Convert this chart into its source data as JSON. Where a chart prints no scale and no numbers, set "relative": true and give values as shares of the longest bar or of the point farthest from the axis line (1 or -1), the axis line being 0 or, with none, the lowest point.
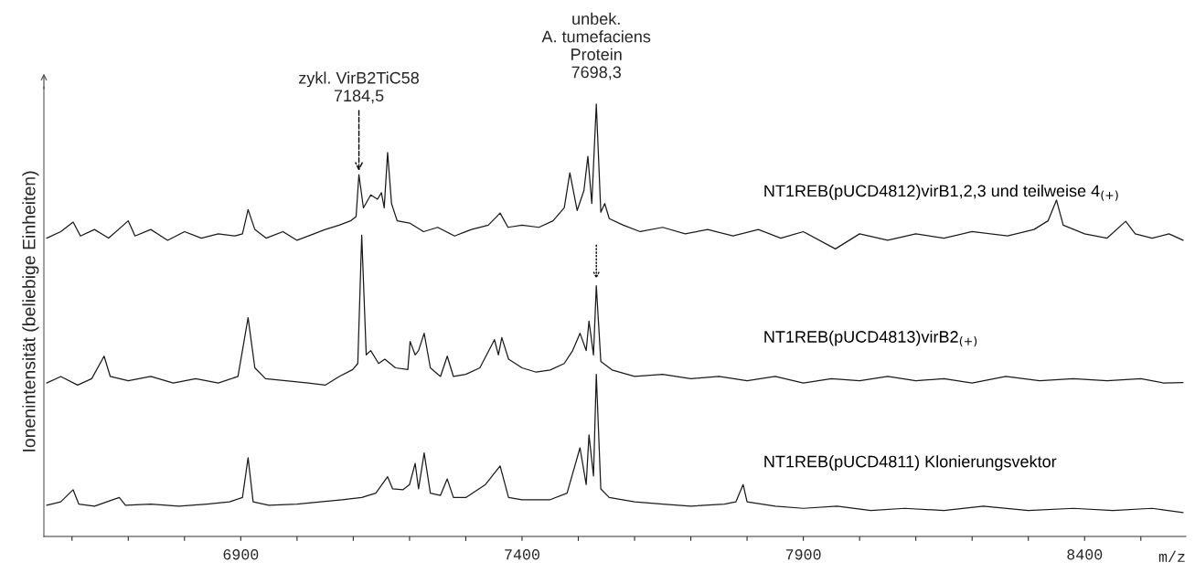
{
  "chart_data": {
    "type": "line",
    "relative": true,
    "xlabel": "m/z",
    "ylabel": "Ionenintensität (beliebige Einheiten)",
    "xlim": [
      6550,
      8580
    ],
    "xticks": [
      {
        "value": 6600,
        "label": null
      },
      {
        "value": 6700,
        "label": null
      },
      {
        "value": 6800,
        "label": null
      },
      6900,
      {
        "value": 7000,
        "label": null
      },
      {
        "value": 7100,
        "label": null
      },
      {
        "value": 7200,
        "label": null
      },
      {
        "value": 7300,
        "label": null
      },
      7400,
      {
        "value": 7500,
        "label": null
      },
      {
        "value": 7600,
        "label": null
      },
      {
        "value": 7700,
        "label": null
      },
      {
        "value": 7800,
        "label": null
      },
      7900,
      {
        "value": 8000,
        "label": null
      },
      {
        "value": 8100,
        "label": null
      },
      {
        "value": 8200,
        "label": null
      },
      {
        "value": 8300,
        "label": null
      },
      8400,
      {
        "value": 8500,
        "label": null
      }
    ],
    "grid": false,
    "marker": "none",
    "line_style": "solid",
    "annotations": [
      {
        "text": "zykl. VirB2TiC58\n7184,5",
        "x": 7110,
        "y": 0.837
      },
      {
        "text": "unbek.\nA. tumefaciens\nProtein\n7698,3",
        "x": 7532,
        "y": 1.0
      }
    ],
    "series": [
      {
        "name": "NT1REB(pUCD4812)virB1,2,3 und teilweise 4$_{(+)}$",
        "color": "#1a1a1a",
        "x": [
          6555,
          6580,
          6602,
          6615,
          6640,
          6665,
          6700,
          6712,
          6740,
          6770,
          6800,
          6830,
          6860,
          6890,
          6903,
          6913,
          6925,
          6945,
          6975,
          7000,
          7030,
          7050,
          7075,
          7095,
          7105,
          7110,
          7118,
          7131,
          7143,
          7150,
          7155,
          7161,
          7168,
          7178,
          7200,
          7225,
          7250,
          7280,
          7310,
          7340,
          7361,
          7375,
          7400,
          7430,
          7455,
          7475,
          7485,
          7498,
          7510,
          7517,
          7524,
          7532,
          7540,
          7547,
          7555,
          7580,
          7610,
          7650,
          7690,
          7730,
          7775,
          7820,
          7860,
          7900,
          7957,
          8000,
          8050,
          8100,
          8150,
          8200,
          8263,
          8310,
          8335,
          8350,
          8362,
          8400,
          8440,
          8473,
          8490,
          8520,
          8550,
          8575
        ],
        "values": [
          0.69,
          0.705,
          0.727,
          0.695,
          0.71,
          0.69,
          0.73,
          0.695,
          0.71,
          0.685,
          0.705,
          0.69,
          0.7,
          0.695,
          0.7,
          0.756,
          0.71,
          0.69,
          0.705,
          0.685,
          0.7,
          0.71,
          0.72,
          0.73,
          0.74,
          0.837,
          0.76,
          0.79,
          0.78,
          0.795,
          0.76,
          0.888,
          0.77,
          0.73,
          0.725,
          0.705,
          0.715,
          0.695,
          0.71,
          0.72,
          0.748,
          0.715,
          0.72,
          0.715,
          0.73,
          0.76,
          0.841,
          0.754,
          0.8,
          0.879,
          0.77,
          1.0,
          0.75,
          0.77,
          0.735,
          0.72,
          0.705,
          0.715,
          0.7,
          0.71,
          0.695,
          0.71,
          0.69,
          0.705,
          0.665,
          0.7,
          0.685,
          0.7,
          0.69,
          0.705,
          0.695,
          0.71,
          0.73,
          0.778,
          0.72,
          0.7,
          0.69,
          0.729,
          0.7,
          0.69,
          0.7,
          0.685
        ]
      },
      {
        "name": "NT1REB(pUCD4813)virB2$_{(+)}$",
        "color": "#1a1a1a",
        "x": [
          6555,
          6580,
          6610,
          6635,
          6657,
          6668,
          6700,
          6740,
          6780,
          6820,
          6860,
          6895,
          6913,
          6925,
          6944,
          6980,
          7020,
          7050,
          7075,
          7099,
          7108,
          7115,
          7123,
          7131,
          7145,
          7156,
          7175,
          7197,
          7201,
          7210,
          7216,
          7226,
          7237,
          7255,
          7267,
          7278,
          7300,
          7325,
          7351,
          7358,
          7364,
          7376,
          7400,
          7425,
          7450,
          7475,
          7490,
          7503,
          7514,
          7519,
          7527,
          7532,
          7540,
          7560,
          7600,
          7650,
          7700,
          7750,
          7800,
          7850,
          7900,
          7950,
          8000,
          8050,
          8100,
          8150,
          8200,
          8260,
          8320,
          8380,
          8440,
          8500,
          8540,
          8575
        ],
        "values": [
          0.355,
          0.37,
          0.35,
          0.365,
          0.417,
          0.37,
          0.36,
          0.37,
          0.355,
          0.365,
          0.355,
          0.37,
          0.506,
          0.39,
          0.365,
          0.36,
          0.355,
          0.35,
          0.37,
          0.386,
          0.4,
          0.697,
          0.42,
          0.43,
          0.4,
          0.41,
          0.39,
          0.386,
          0.451,
          0.42,
          0.43,
          0.47,
          0.39,
          0.37,
          0.417,
          0.37,
          0.375,
          0.39,
          0.455,
          0.42,
          0.46,
          0.41,
          0.39,
          0.38,
          0.385,
          0.4,
          0.43,
          0.47,
          0.43,
          0.498,
          0.42,
          0.58,
          0.405,
          0.385,
          0.37,
          0.375,
          0.365,
          0.37,
          0.36,
          0.37,
          0.355,
          0.365,
          0.36,
          0.37,
          0.36,
          0.365,
          0.355,
          0.37,
          0.36,
          0.365,
          0.36,
          0.365,
          0.355,
          0.356
        ]
      },
      {
        "name": "NT1REB(pUCD4811) Klonierungsvektor",
        "color": "#1a1a1a",
        "x": [
          6555,
          6580,
          6602,
          6612,
          6640,
          6684,
          6695,
          6740,
          6790,
          6840,
          6880,
          6903,
          6913,
          6922,
          6950,
          7000,
          7042,
          7080,
          7115,
          7140,
          7161,
          7170,
          7188,
          7200,
          7210,
          7216,
          7226,
          7237,
          7255,
          7267,
          7278,
          7300,
          7335,
          7361,
          7376,
          7400,
          7450,
          7480,
          7503,
          7514,
          7519,
          7527,
          7532,
          7540,
          7555,
          7600,
          7650,
          7700,
          7760,
          7780,
          7793,
          7800,
          7850,
          7900,
          7960,
          8020,
          8080,
          8150,
          8220,
          8300,
          8380,
          8450,
          8520,
          8575
        ],
        "values": [
          0.072,
          0.08,
          0.108,
          0.075,
          0.07,
          0.09,
          0.072,
          0.075,
          0.07,
          0.075,
          0.08,
          0.09,
          0.182,
          0.08,
          0.072,
          0.075,
          0.08,
          0.085,
          0.09,
          0.1,
          0.138,
          0.11,
          0.108,
          0.12,
          0.169,
          0.11,
          0.193,
          0.1,
          0.095,
          0.133,
          0.09,
          0.09,
          0.12,
          0.163,
          0.09,
          0.085,
          0.085,
          0.1,
          0.205,
          0.12,
          0.235,
          0.14,
          0.375,
          0.11,
          0.09,
          0.08,
          0.075,
          0.07,
          0.075,
          0.08,
          0.12,
          0.08,
          0.07,
          0.065,
          0.07,
          0.06,
          0.065,
          0.06,
          0.07,
          0.06,
          0.065,
          0.06,
          0.065,
          0.055
        ]
      }
    ]
  }
}
